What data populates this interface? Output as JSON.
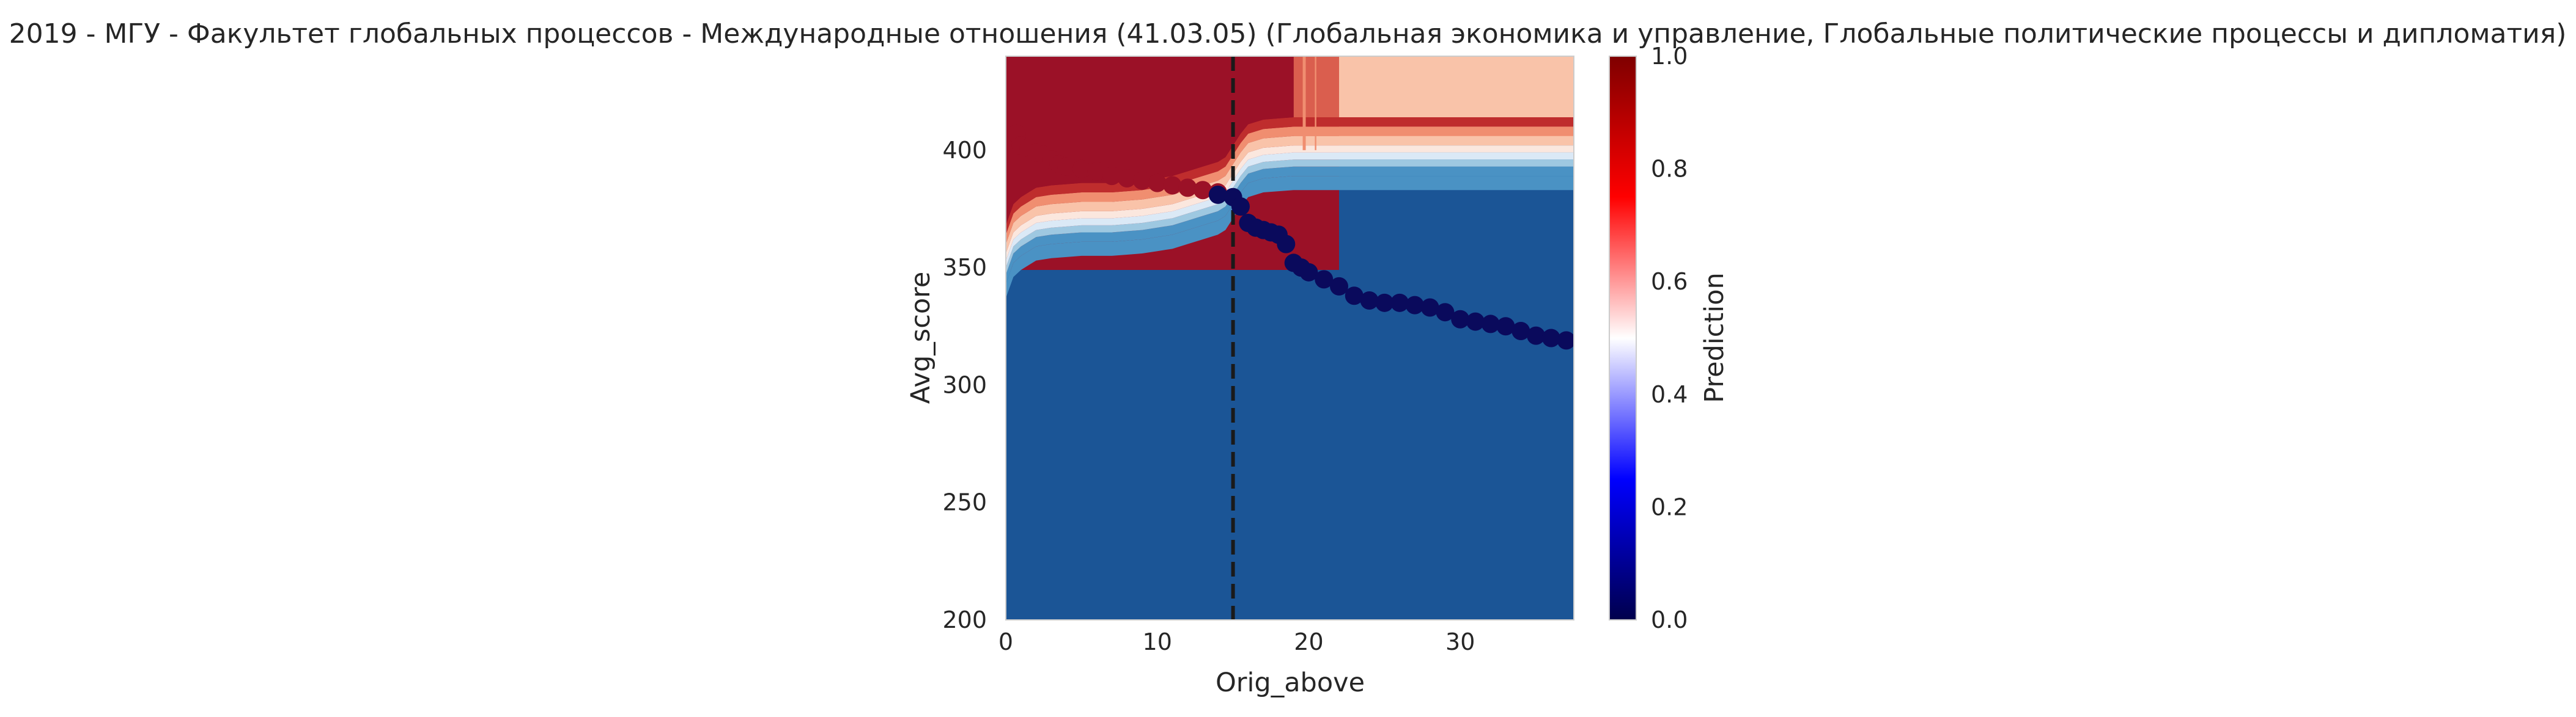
{
  "chart_data": {
    "type": "heatmap",
    "title": "2019 - МГУ - Факультет глобальных процессов - Международные отношения (41.03.05) (Глобальная экономика и управление, Глобальные политические процессы и дипломатия)",
    "xlabel": "Orig_above",
    "ylabel": "Avg_score",
    "xlim": [
      0,
      37.5
    ],
    "ylim": [
      200,
      440
    ],
    "x_ticks": [
      {
        "value": 0,
        "label": "0"
      },
      {
        "value": 10,
        "label": "10"
      },
      {
        "value": 20,
        "label": "20"
      },
      {
        "value": 30,
        "label": "30"
      }
    ],
    "y_ticks": [
      {
        "value": 200,
        "label": "200"
      },
      {
        "value": 250,
        "label": "250"
      },
      {
        "value": 300,
        "label": "300"
      },
      {
        "value": 350,
        "label": "350"
      },
      {
        "value": 400,
        "label": "400"
      }
    ],
    "grid": false,
    "colorbar": {
      "label": "Prediction",
      "colormap": "seismic",
      "range": [
        0,
        1
      ],
      "ticks": [
        {
          "value": 0.0,
          "label": "0.0"
        },
        {
          "value": 0.2,
          "label": "0.2"
        },
        {
          "value": 0.4,
          "label": "0.4"
        },
        {
          "value": 0.6,
          "label": "0.6"
        },
        {
          "value": 0.8,
          "label": "0.8"
        },
        {
          "value": 1.0,
          "label": "1.0"
        }
      ]
    },
    "threshold_line": {
      "x": 15,
      "style": "dashed",
      "color": "#1a1a1a"
    },
    "contour_colors": {
      "level_0": "#1b5596",
      "level_1": "#4a92c4",
      "level_2": "#9ec8e1",
      "level_3": "#dbe9f6",
      "level_4": "#fbe7de",
      "level_5": "#f9c3a9",
      "level_6": "#f08e70",
      "level_7": "#da5e4e",
      "level_8": "#bf2d2d",
      "level_9": "#9b1127"
    },
    "boundary": {
      "x": [
        0,
        0.5,
        1,
        1.5,
        2,
        3,
        4,
        5,
        6,
        7,
        8,
        9,
        10,
        11,
        12,
        13,
        14,
        14.5,
        15,
        15.5,
        16,
        17,
        18,
        19,
        20,
        22,
        25,
        30,
        37.5
      ],
      "y": [
        343,
        352,
        355,
        357,
        359,
        360,
        360.5,
        361,
        361,
        361,
        361.5,
        362,
        363,
        364,
        366,
        368,
        370,
        372,
        377,
        382,
        386,
        388,
        388.5,
        389,
        389,
        389,
        389,
        389,
        389
      ]
    },
    "series": [
      {
        "marker_color": "#9b1127",
        "x": [
          0.7,
          1,
          1.5,
          2,
          2.5,
          3,
          3.5,
          4,
          5,
          6,
          7,
          8,
          9,
          10,
          11,
          12,
          13,
          14
        ],
        "y": [
          407,
          402,
          401,
          399,
          398,
          396,
          394,
          393,
          392,
          391,
          389,
          388,
          387,
          386,
          385,
          384,
          383,
          382
        ]
      },
      {
        "marker_color": "#0a0a5c",
        "x": [
          14,
          15,
          15.5,
          16,
          16.5,
          17,
          17.5,
          18,
          18.5,
          19,
          19.5,
          20,
          21,
          22,
          23,
          24,
          25,
          26,
          27,
          28,
          29,
          30,
          31,
          32,
          33,
          34,
          35,
          36,
          37
        ],
        "y": [
          381,
          380,
          376,
          369,
          367,
          366,
          365,
          364,
          360,
          352,
          350,
          348,
          345,
          342,
          338,
          336,
          335,
          335,
          334,
          333,
          331,
          328,
          327,
          326,
          325,
          323,
          321,
          320,
          319
        ]
      }
    ]
  }
}
